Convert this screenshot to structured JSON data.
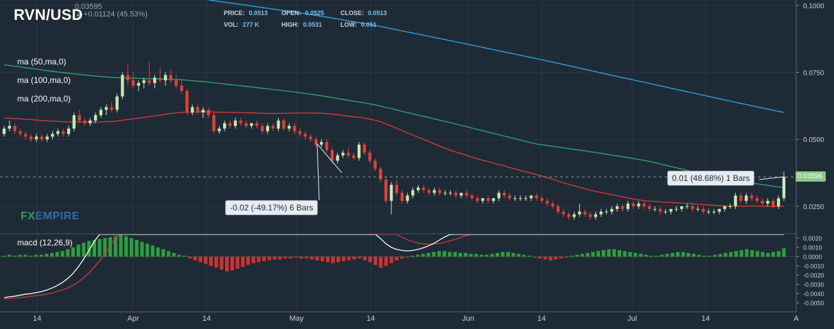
{
  "header": {
    "pair": "RVN/USD",
    "last_price": "0.03595",
    "change": "+0.01124 (45.53%)",
    "ohlc": [
      {
        "label": "PRICE:",
        "value": "0.0513"
      },
      {
        "label": "OPEN:",
        "value": "0.0525"
      },
      {
        "label": "CLOSE:",
        "value": "0.0513"
      },
      {
        "label": "VOL:",
        "value": "277 K"
      },
      {
        "label": "HIGH:",
        "value": "0.0531"
      },
      {
        "label": "LOW:",
        "value": "0.051"
      }
    ]
  },
  "indicators": {
    "ma50": "ma (50,ma,0)",
    "ma100": "ma (100,ma,0)",
    "ma200": "ma (200,ma,0)",
    "macd": "macd (12,26,9)"
  },
  "logo": {
    "part1": "FX",
    "part2": "EMPIRE"
  },
  "annotations": {
    "down": "-0.02 (-49.17%) 6 Bars",
    "up": "0.01 (48.68%) 1 Bars"
  },
  "price_tag": "0.03596",
  "colors": {
    "background": "#1e2a36",
    "bullish": "#c8e6b4",
    "bearish": "#e0413a",
    "ma50": "#2fa0e0",
    "ma100": "#2ea36a",
    "ma200": "#d23a3a",
    "macd_line": "#ffffff",
    "signal_line": "#d23a3a",
    "hist_pos": "#2e9e3e",
    "hist_neg": "#cc3333"
  },
  "chart_data": [
    {
      "type": "candlestick",
      "title": "RVN/USD",
      "x_ticks": [
        "14",
        "Apr",
        "14",
        "May",
        "14",
        "Jun",
        "14",
        "Jul",
        "14",
        "A"
      ],
      "y_ticks": [
        "0.1000",
        "0.0750",
        "0.0500",
        "0.0250"
      ],
      "ylim": [
        0.015,
        0.102
      ],
      "current_price": 0.03596,
      "candles": [
        [
          0.052,
          0.055,
          0.051,
          0.054
        ],
        [
          0.054,
          0.057,
          0.053,
          0.055
        ],
        [
          0.055,
          0.056,
          0.052,
          0.053
        ],
        [
          0.053,
          0.054,
          0.051,
          0.052
        ],
        [
          0.052,
          0.053,
          0.05,
          0.051
        ],
        [
          0.051,
          0.052,
          0.049,
          0.05
        ],
        [
          0.05,
          0.052,
          0.049,
          0.051
        ],
        [
          0.051,
          0.052,
          0.049,
          0.05
        ],
        [
          0.05,
          0.052,
          0.049,
          0.051
        ],
        [
          0.051,
          0.053,
          0.05,
          0.052
        ],
        [
          0.052,
          0.054,
          0.051,
          0.053
        ],
        [
          0.053,
          0.054,
          0.051,
          0.052
        ],
        [
          0.052,
          0.055,
          0.051,
          0.054
        ],
        [
          0.054,
          0.06,
          0.053,
          0.059
        ],
        [
          0.059,
          0.061,
          0.056,
          0.057
        ],
        [
          0.057,
          0.058,
          0.055,
          0.056
        ],
        [
          0.056,
          0.058,
          0.055,
          0.057
        ],
        [
          0.057,
          0.06,
          0.056,
          0.059
        ],
        [
          0.059,
          0.062,
          0.058,
          0.061
        ],
        [
          0.061,
          0.063,
          0.059,
          0.062
        ],
        [
          0.062,
          0.064,
          0.06,
          0.061
        ],
        [
          0.061,
          0.067,
          0.06,
          0.066
        ],
        [
          0.066,
          0.075,
          0.065,
          0.074
        ],
        [
          0.074,
          0.078,
          0.07,
          0.072
        ],
        [
          0.072,
          0.075,
          0.069,
          0.07
        ],
        [
          0.07,
          0.072,
          0.068,
          0.071
        ],
        [
          0.071,
          0.073,
          0.069,
          0.072
        ],
        [
          0.072,
          0.079,
          0.07,
          0.071
        ],
        [
          0.071,
          0.074,
          0.069,
          0.073
        ],
        [
          0.073,
          0.077,
          0.071,
          0.072
        ],
        [
          0.072,
          0.075,
          0.07,
          0.074
        ],
        [
          0.074,
          0.076,
          0.071,
          0.072
        ],
        [
          0.072,
          0.074,
          0.069,
          0.07
        ],
        [
          0.07,
          0.072,
          0.067,
          0.068
        ],
        [
          0.068,
          0.069,
          0.059,
          0.06
        ],
        [
          0.06,
          0.063,
          0.059,
          0.062
        ],
        [
          0.062,
          0.063,
          0.059,
          0.06
        ],
        [
          0.06,
          0.062,
          0.058,
          0.061
        ],
        [
          0.061,
          0.062,
          0.058,
          0.059
        ],
        [
          0.059,
          0.06,
          0.052,
          0.053
        ],
        [
          0.053,
          0.055,
          0.052,
          0.054
        ],
        [
          0.054,
          0.057,
          0.053,
          0.056
        ],
        [
          0.056,
          0.057,
          0.054,
          0.055
        ],
        [
          0.055,
          0.058,
          0.054,
          0.057
        ],
        [
          0.057,
          0.058,
          0.055,
          0.056
        ],
        [
          0.056,
          0.057,
          0.054,
          0.055
        ],
        [
          0.055,
          0.056,
          0.054,
          0.056
        ],
        [
          0.056,
          0.057,
          0.054,
          0.055
        ],
        [
          0.055,
          0.056,
          0.052,
          0.053
        ],
        [
          0.053,
          0.056,
          0.052,
          0.055
        ],
        [
          0.055,
          0.056,
          0.053,
          0.054
        ],
        [
          0.054,
          0.058,
          0.053,
          0.057
        ],
        [
          0.057,
          0.058,
          0.053,
          0.054
        ],
        [
          0.054,
          0.056,
          0.053,
          0.055
        ],
        [
          0.055,
          0.056,
          0.052,
          0.053
        ],
        [
          0.053,
          0.054,
          0.051,
          0.052
        ],
        [
          0.052,
          0.053,
          0.05,
          0.051
        ],
        [
          0.051,
          0.052,
          0.049,
          0.05
        ],
        [
          0.05,
          0.051,
          0.047,
          0.048
        ],
        [
          0.048,
          0.05,
          0.047,
          0.049
        ],
        [
          0.049,
          0.05,
          0.045,
          0.046
        ],
        [
          0.046,
          0.047,
          0.041,
          0.042
        ],
        [
          0.042,
          0.045,
          0.041,
          0.044
        ],
        [
          0.044,
          0.046,
          0.043,
          0.045
        ],
        [
          0.045,
          0.047,
          0.043,
          0.044
        ],
        [
          0.044,
          0.045,
          0.042,
          0.043
        ],
        [
          0.043,
          0.049,
          0.042,
          0.048
        ],
        [
          0.048,
          0.049,
          0.044,
          0.045
        ],
        [
          0.045,
          0.046,
          0.041,
          0.042
        ],
        [
          0.042,
          0.043,
          0.038,
          0.039
        ],
        [
          0.039,
          0.04,
          0.034,
          0.035
        ],
        [
          0.035,
          0.036,
          0.026,
          0.027
        ],
        [
          0.027,
          0.034,
          0.022,
          0.033
        ],
        [
          0.033,
          0.035,
          0.029,
          0.03
        ],
        [
          0.03,
          0.031,
          0.026,
          0.027
        ],
        [
          0.027,
          0.03,
          0.026,
          0.029
        ],
        [
          0.029,
          0.032,
          0.028,
          0.031
        ],
        [
          0.031,
          0.033,
          0.03,
          0.032
        ],
        [
          0.032,
          0.033,
          0.03,
          0.031
        ],
        [
          0.031,
          0.032,
          0.029,
          0.03
        ],
        [
          0.03,
          0.032,
          0.029,
          0.031
        ],
        [
          0.031,
          0.032,
          0.029,
          0.03
        ],
        [
          0.03,
          0.031,
          0.029,
          0.03
        ],
        [
          0.03,
          0.031,
          0.029,
          0.03
        ],
        [
          0.03,
          0.031,
          0.028,
          0.029
        ],
        [
          0.029,
          0.03,
          0.028,
          0.03
        ],
        [
          0.03,
          0.031,
          0.028,
          0.029
        ],
        [
          0.029,
          0.03,
          0.027,
          0.028
        ],
        [
          0.028,
          0.029,
          0.026,
          0.027
        ],
        [
          0.027,
          0.028,
          0.026,
          0.028
        ],
        [
          0.028,
          0.029,
          0.026,
          0.027
        ],
        [
          0.027,
          0.028,
          0.026,
          0.028
        ],
        [
          0.028,
          0.031,
          0.027,
          0.03
        ],
        [
          0.03,
          0.031,
          0.028,
          0.029
        ],
        [
          0.029,
          0.03,
          0.027,
          0.028
        ],
        [
          0.028,
          0.029,
          0.027,
          0.028
        ],
        [
          0.028,
          0.029,
          0.027,
          0.028
        ],
        [
          0.028,
          0.029,
          0.027,
          0.028
        ],
        [
          0.028,
          0.029,
          0.027,
          0.029
        ],
        [
          0.029,
          0.03,
          0.027,
          0.028
        ],
        [
          0.028,
          0.029,
          0.026,
          0.027
        ],
        [
          0.027,
          0.028,
          0.025,
          0.026
        ],
        [
          0.026,
          0.027,
          0.024,
          0.025
        ],
        [
          0.025,
          0.026,
          0.022,
          0.023
        ],
        [
          0.023,
          0.024,
          0.021,
          0.022
        ],
        [
          0.022,
          0.023,
          0.02,
          0.021
        ],
        [
          0.021,
          0.023,
          0.02,
          0.022
        ],
        [
          0.022,
          0.026,
          0.021,
          0.023
        ],
        [
          0.023,
          0.024,
          0.021,
          0.022
        ],
        [
          0.022,
          0.023,
          0.02,
          0.021
        ],
        [
          0.021,
          0.023,
          0.02,
          0.022
        ],
        [
          0.022,
          0.024,
          0.021,
          0.023
        ],
        [
          0.023,
          0.024,
          0.022,
          0.023
        ],
        [
          0.023,
          0.025,
          0.022,
          0.024
        ],
        [
          0.024,
          0.026,
          0.023,
          0.025
        ],
        [
          0.025,
          0.026,
          0.023,
          0.024
        ],
        [
          0.024,
          0.027,
          0.023,
          0.026
        ],
        [
          0.026,
          0.027,
          0.024,
          0.025
        ],
        [
          0.025,
          0.027,
          0.024,
          0.026
        ],
        [
          0.026,
          0.027,
          0.024,
          0.025
        ],
        [
          0.025,
          0.026,
          0.023,
          0.024
        ],
        [
          0.024,
          0.025,
          0.023,
          0.024
        ],
        [
          0.024,
          0.025,
          0.022,
          0.023
        ],
        [
          0.023,
          0.024,
          0.022,
          0.023
        ],
        [
          0.023,
          0.024,
          0.022,
          0.024
        ],
        [
          0.024,
          0.025,
          0.023,
          0.024
        ],
        [
          0.024,
          0.025,
          0.023,
          0.025
        ],
        [
          0.025,
          0.026,
          0.024,
          0.025
        ],
        [
          0.025,
          0.026,
          0.023,
          0.024
        ],
        [
          0.024,
          0.025,
          0.023,
          0.024
        ],
        [
          0.024,
          0.025,
          0.022,
          0.023
        ],
        [
          0.023,
          0.024,
          0.022,
          0.023
        ],
        [
          0.023,
          0.024,
          0.022,
          0.023
        ],
        [
          0.023,
          0.024,
          0.022,
          0.024
        ],
        [
          0.024,
          0.025,
          0.023,
          0.025
        ],
        [
          0.025,
          0.026,
          0.024,
          0.025
        ],
        [
          0.025,
          0.03,
          0.024,
          0.029
        ],
        [
          0.029,
          0.03,
          0.026,
          0.027
        ],
        [
          0.027,
          0.03,
          0.026,
          0.029
        ],
        [
          0.029,
          0.03,
          0.027,
          0.028
        ],
        [
          0.028,
          0.029,
          0.026,
          0.027
        ],
        [
          0.027,
          0.028,
          0.025,
          0.026
        ],
        [
          0.026,
          0.028,
          0.025,
          0.027
        ],
        [
          0.027,
          0.028,
          0.024,
          0.025
        ],
        [
          0.025,
          0.029,
          0.024,
          0.028
        ],
        [
          0.028,
          0.038,
          0.027,
          0.036
        ]
      ],
      "ma_labels": [
        "ma (50,ma,0)",
        "ma (100,ma,0)",
        "ma (200,ma,0)"
      ]
    },
    {
      "type": "bar",
      "title": "macd (12,26,9)",
      "y_ticks": [
        "0.0020",
        "0.0010",
        "0.0000",
        "-0.0010",
        "-0.0020",
        "-0.0030",
        "-0.0040",
        "-0.0050"
      ],
      "ylim": [
        -0.0056,
        0.0024
      ],
      "histogram": [
        0.0001,
        0.0002,
        0.0001,
        0.0002,
        0.0002,
        0.0001,
        0.0002,
        0.0002,
        0.0003,
        0.0004,
        0.0005,
        0.0006,
        0.0008,
        0.001,
        0.0013,
        0.0015,
        0.0017,
        0.0018,
        0.0019,
        0.002,
        0.0021,
        0.0022,
        0.0023,
        0.0022,
        0.002,
        0.0018,
        0.0016,
        0.0014,
        0.0012,
        0.001,
        0.0008,
        0.0006,
        0.0004,
        0.0002,
        0.0001,
        -0.0002,
        -0.0004,
        -0.0006,
        -0.0008,
        -0.001,
        -0.0012,
        -0.0014,
        -0.0016,
        -0.0015,
        -0.0013,
        -0.0011,
        -0.0009,
        -0.0007,
        -0.0006,
        -0.0005,
        -0.0004,
        -0.0003,
        -0.0003,
        -0.0002,
        -0.0002,
        -0.0001,
        -0.0002,
        -0.0002,
        -0.0003,
        -0.0004,
        -0.0005,
        -0.0006,
        -0.0007,
        -0.0006,
        -0.0005,
        -0.0004,
        -0.0003,
        -0.0002,
        -0.0004,
        -0.0006,
        -0.0009,
        -0.0012,
        -0.001,
        -0.0007,
        -0.0004,
        -0.0002,
        -0.0001,
        0.0001,
        0.0002,
        0.0003,
        0.0004,
        0.0005,
        0.0006,
        0.0006,
        0.0005,
        0.0005,
        0.0004,
        0.0004,
        0.0003,
        0.0003,
        0.0002,
        0.0002,
        0.0003,
        0.0004,
        0.0005,
        0.0005,
        0.0004,
        0.0003,
        0.0002,
        0.0001,
        -0.0001,
        -0.0002,
        -0.0003,
        -0.0004,
        -0.0003,
        -0.0002,
        -0.0001,
        0.0001,
        0.0002,
        0.0003,
        0.0004,
        0.0005,
        0.0006,
        0.0007,
        0.0008,
        0.0008,
        0.0007,
        0.0006,
        0.0005,
        0.0004,
        0.0003,
        0.0002,
        0.0001,
        0.0001,
        0.0002,
        0.0003,
        0.0004,
        0.0005,
        0.0005,
        0.0004,
        0.0003,
        0.0002,
        0.0001,
        0.0001,
        0.0002,
        0.0003,
        0.0004,
        0.0005,
        0.0006,
        0.0007,
        0.0008,
        0.0007,
        0.0006,
        0.0005,
        0.0004,
        0.0005,
        0.0006,
        0.0009
      ]
    }
  ]
}
